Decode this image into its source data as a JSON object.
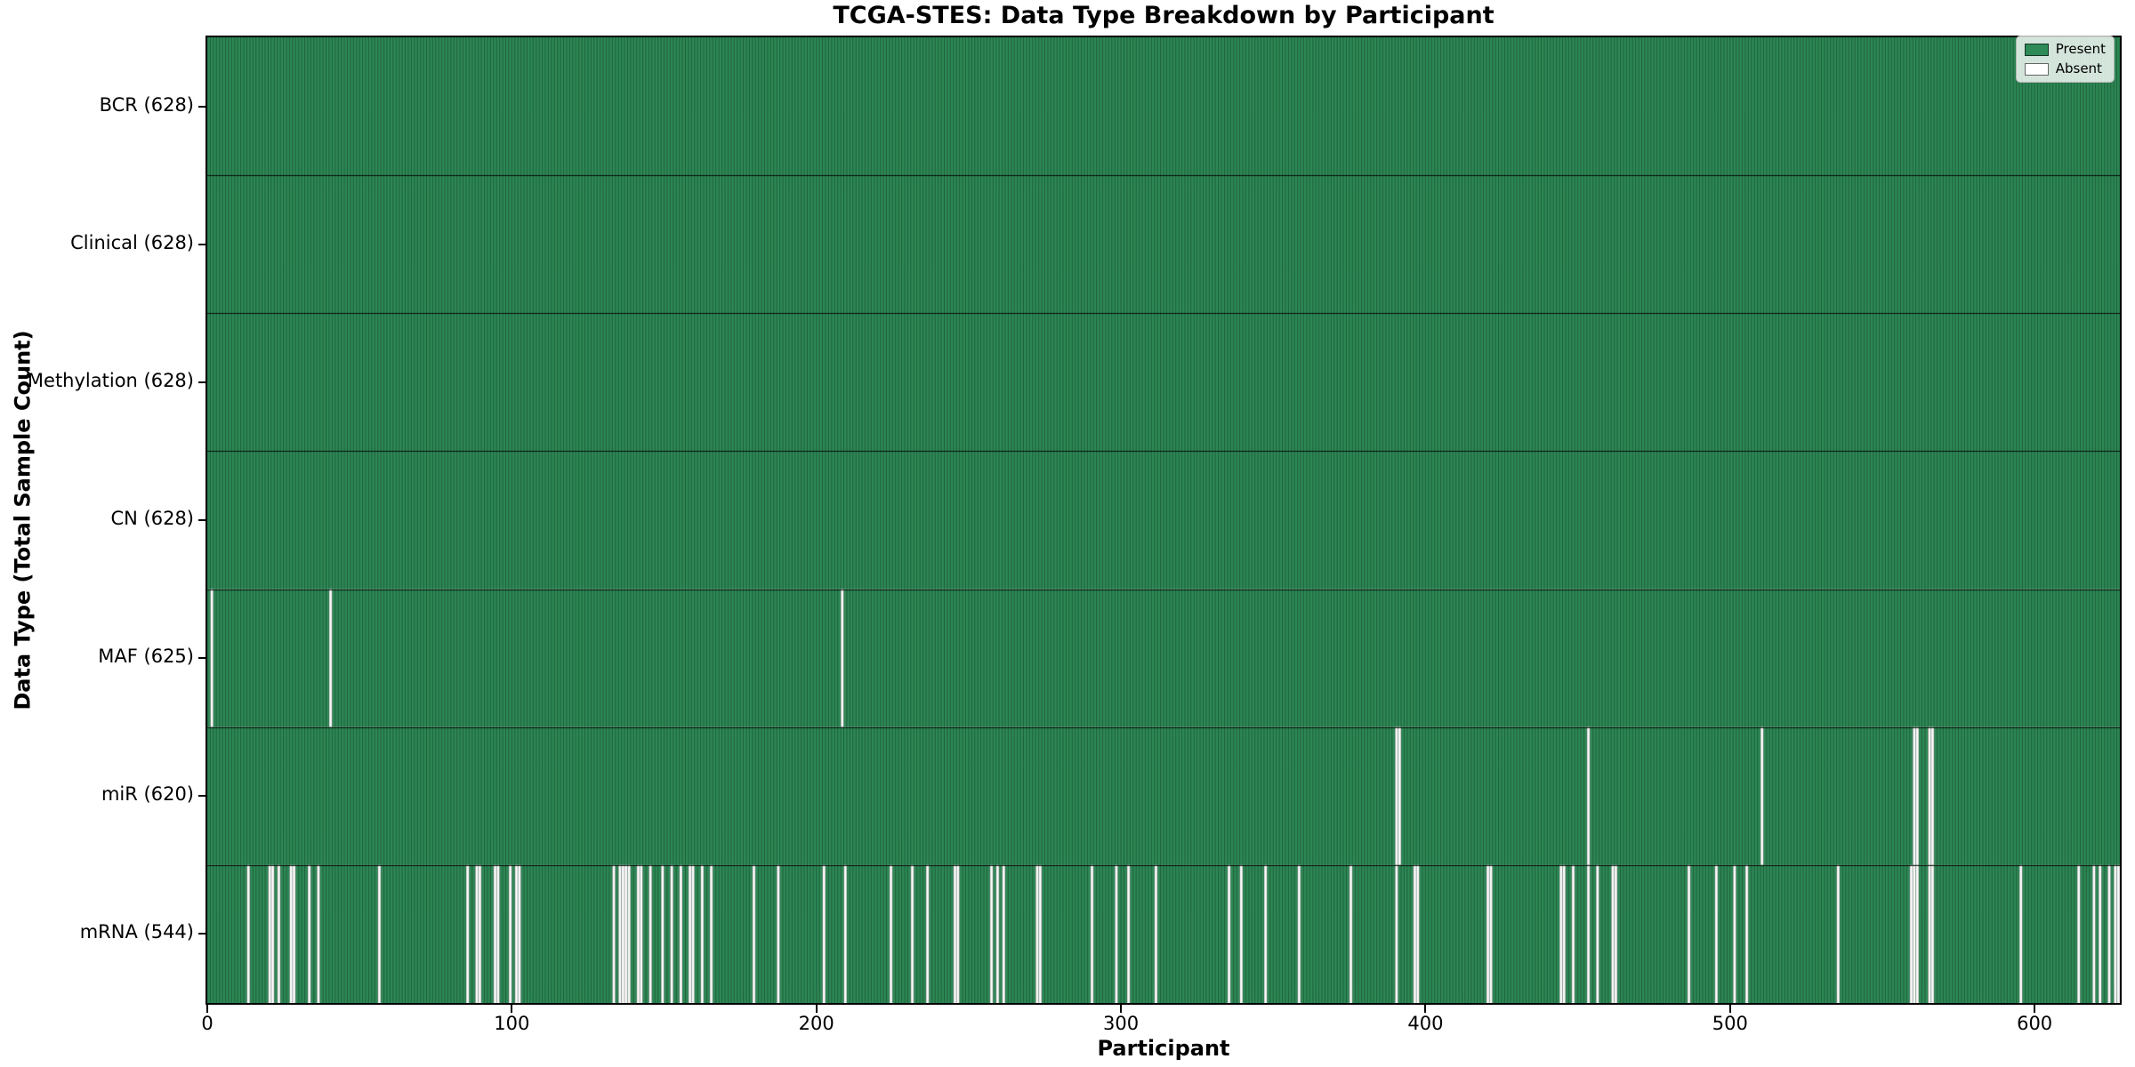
{
  "figure": {
    "title": "TCGA-STES: Data Type Breakdown by Participant",
    "xlabel": "Participant",
    "ylabel": "Data Type (Total Sample Count)"
  },
  "chart_data": {
    "type": "heatmap",
    "title": "TCGA-STES: Data Type Breakdown by Participant",
    "xlabel": "Participant",
    "ylabel": "Data Type (Total Sample Count)",
    "n_participants": 628,
    "x_range": [
      0,
      628
    ],
    "x_ticks": [
      0,
      100,
      200,
      300,
      400,
      500,
      600
    ],
    "present_color": "#2e8b57",
    "absent_color": "#ffffff",
    "grid": false,
    "legend_position": "upper right",
    "legend": [
      {
        "label": "Present",
        "color": "#2e8b57"
      },
      {
        "label": "Absent",
        "color": "#ffffff"
      }
    ],
    "rows": [
      {
        "label": "BCR",
        "count": 628,
        "absent": []
      },
      {
        "label": "Clinical",
        "count": 628,
        "absent": []
      },
      {
        "label": "Methylation",
        "count": 628,
        "absent": []
      },
      {
        "label": "CN",
        "count": 628,
        "absent": []
      },
      {
        "label": "MAF",
        "count": 625,
        "absent": [
          1,
          40,
          208
        ]
      },
      {
        "label": "miR",
        "count": 620,
        "absent": [
          390,
          391,
          453,
          510,
          560,
          561,
          565,
          566
        ]
      },
      {
        "label": "mRNA",
        "count": 544,
        "absent": [
          13,
          20,
          21,
          23,
          27,
          28,
          33,
          36,
          56,
          85,
          88,
          89,
          94,
          95,
          99,
          101,
          102,
          133,
          135,
          136,
          137,
          138,
          141,
          142,
          145,
          149,
          152,
          155,
          158,
          159,
          162,
          165,
          179,
          187,
          202,
          209,
          224,
          231,
          236,
          245,
          246,
          257,
          259,
          261,
          272,
          273,
          290,
          298,
          302,
          311,
          335,
          339,
          347,
          358,
          375,
          390,
          396,
          397,
          420,
          421,
          444,
          445,
          448,
          453,
          456,
          461,
          462,
          486,
          495,
          501,
          505,
          535,
          559,
          560,
          561,
          565,
          566,
          595,
          614,
          619,
          621,
          624,
          626,
          627
        ]
      }
    ]
  }
}
